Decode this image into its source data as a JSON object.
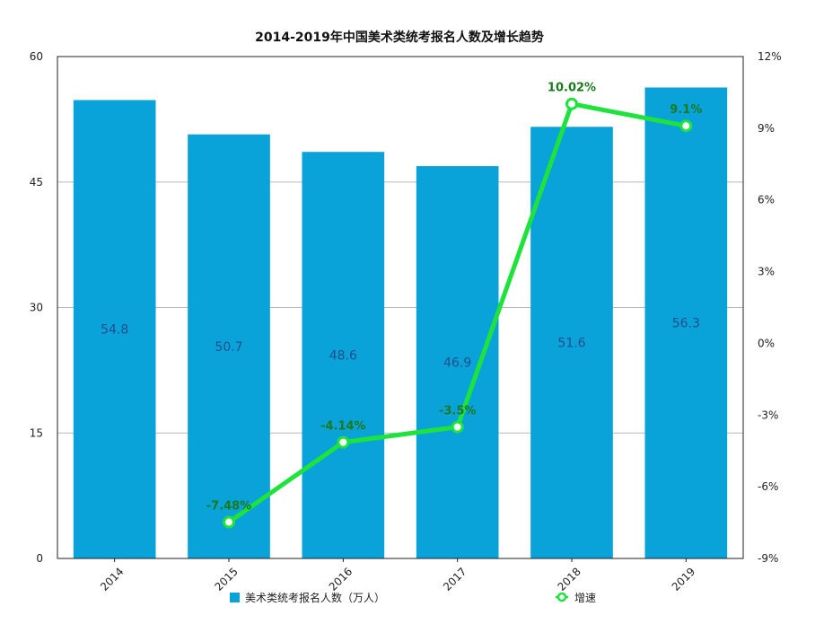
{
  "chart_data": {
    "type": "bar",
    "title": "2014-2019年中国美术类统考报名人数及增长趋势",
    "categories": [
      "2014",
      "2015",
      "2016",
      "2017",
      "2018",
      "2019"
    ],
    "series": [
      {
        "name": "美术类统考报名人数（万人）",
        "type": "bar",
        "axis": "left",
        "values": [
          54.8,
          50.7,
          48.6,
          46.9,
          51.6,
          56.3
        ],
        "labels": [
          "54.8",
          "50.7",
          "48.6",
          "46.9",
          "51.6",
          "56.3"
        ],
        "color": "#0aa3d9"
      },
      {
        "name": "增速",
        "type": "line",
        "axis": "right",
        "values": [
          null,
          -7.48,
          -4.14,
          -3.5,
          10.02,
          9.1
        ],
        "labels": [
          "",
          "-7.48%",
          "-4.14%",
          "-3.5%",
          "10.02%",
          "9.1%"
        ],
        "color": "#1ee33c"
      }
    ],
    "y_left": {
      "min": 0,
      "max": 60,
      "ticks": [
        0,
        15,
        30,
        45,
        60
      ],
      "tick_labels": [
        "0",
        "15",
        "30",
        "45",
        "60"
      ]
    },
    "y_right": {
      "min": -9,
      "max": 12,
      "ticks": [
        -9,
        -6,
        -3,
        0,
        3,
        6,
        9,
        12
      ],
      "tick_labels": [
        "-9%",
        "-6%",
        "-3%",
        "0%",
        "3%",
        "6%",
        "9%",
        "12%"
      ]
    },
    "grid": true,
    "legend_position": "bottom"
  }
}
